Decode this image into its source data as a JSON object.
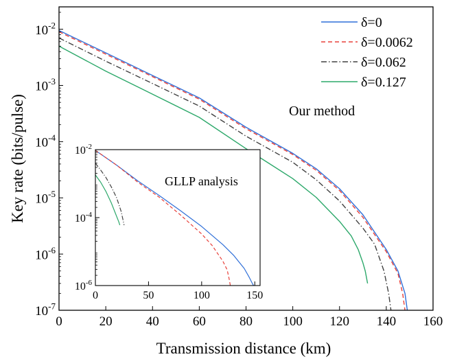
{
  "chart_data": [
    {
      "type": "line",
      "xlabel": "Transmission distance (km)",
      "ylabel": "Key rate (bits/pulse)",
      "xlim": [
        0,
        160
      ],
      "ylim": [
        1e-07,
        0.025
      ],
      "yscale": "log",
      "x_ticks": [
        0,
        20,
        40,
        60,
        80,
        100,
        120,
        140,
        160
      ],
      "y_ticks": [
        {
          "value": 1e-07,
          "base": "10",
          "exp": "-7"
        },
        {
          "value": 1e-06,
          "base": "10",
          "exp": "-6"
        },
        {
          "value": 1e-05,
          "base": "10",
          "exp": "-5"
        },
        {
          "value": 0.0001,
          "base": "10",
          "exp": "-4"
        },
        {
          "value": 0.001,
          "base": "10",
          "exp": "-3"
        },
        {
          "value": 0.01,
          "base": "10",
          "exp": "-2"
        }
      ],
      "annotation": "Our method",
      "legend_position": "top-right",
      "series": [
        {
          "name": "δ=0",
          "color": "#2f6fd8",
          "dash": "solid",
          "points": [
            [
              0,
              0.0095
            ],
            [
              20,
              0.0038
            ],
            [
              40,
              0.0015
            ],
            [
              60,
              0.0006
            ],
            [
              80,
              0.00018
            ],
            [
              100,
              6.2e-05
            ],
            [
              110,
              3.3e-05
            ],
            [
              120,
              1.45e-05
            ],
            [
              130,
              5e-06
            ],
            [
              140,
              1.2e-06
            ],
            [
              145,
              5e-07
            ],
            [
              148,
              2e-07
            ],
            [
              149,
              1e-07
            ]
          ]
        },
        {
          "name": "δ=0.0062",
          "color": "#e8403a",
          "dash": "dashed",
          "points": [
            [
              0,
              0.009
            ],
            [
              20,
              0.0036
            ],
            [
              40,
              0.00143
            ],
            [
              60,
              0.00057
            ],
            [
              80,
              0.00017
            ],
            [
              100,
              5.9e-05
            ],
            [
              110,
              3.1e-05
            ],
            [
              120,
              1.35e-05
            ],
            [
              130,
              4.5e-06
            ],
            [
              140,
              1.1e-06
            ],
            [
              145,
              4.5e-07
            ],
            [
              147,
              2e-07
            ],
            [
              148,
              1e-07
            ]
          ]
        },
        {
          "name": "δ=0.062",
          "color": "#404040",
          "dash": "dashdot",
          "points": [
            [
              0,
              0.007
            ],
            [
              20,
              0.0027
            ],
            [
              40,
              0.00108
            ],
            [
              60,
              0.00043
            ],
            [
              80,
              0.000125
            ],
            [
              100,
              4.3e-05
            ],
            [
              110,
              2.1e-05
            ],
            [
              120,
              8.8e-06
            ],
            [
              130,
              2.9e-06
            ],
            [
              135,
              1.5e-06
            ],
            [
              139,
              5e-07
            ],
            [
              141,
              2e-07
            ],
            [
              142,
              1e-07
            ]
          ]
        },
        {
          "name": "δ=0.127",
          "color": "#2ca86a",
          "dash": "solid",
          "points": [
            [
              0,
              0.005
            ],
            [
              20,
              0.0018
            ],
            [
              40,
              0.0007
            ],
            [
              60,
              0.00027
            ],
            [
              80,
              7.5e-05
            ],
            [
              100,
              2.2e-05
            ],
            [
              110,
              1.02e-05
            ],
            [
              120,
              3.8e-06
            ],
            [
              125,
              2.1e-06
            ],
            [
              128,
              1.2e-06
            ],
            [
              130,
              7e-07
            ],
            [
              131,
              5e-07
            ],
            [
              132,
              3e-07
            ]
          ]
        }
      ]
    },
    {
      "type": "line",
      "inset": true,
      "annotation": "GLLP analysis",
      "xlim": [
        0,
        155
      ],
      "ylim": [
        1e-06,
        0.01
      ],
      "yscale": "log",
      "x_ticks": [
        0,
        50,
        100,
        150
      ],
      "y_ticks": [
        {
          "value": 1e-06,
          "base": "10",
          "exp": "-6"
        },
        {
          "value": 0.0001,
          "base": "10",
          "exp": "-4"
        },
        {
          "value": 0.01,
          "base": "10",
          "exp": "-2"
        }
      ],
      "series": [
        {
          "name": "δ=0",
          "color": "#2f6fd8",
          "dash": "solid",
          "points": [
            [
              0,
              0.0095
            ],
            [
              20,
              0.0035
            ],
            [
              40,
              0.0012
            ],
            [
              60,
              0.00045
            ],
            [
              80,
              0.00016
            ],
            [
              100,
              5.5e-05
            ],
            [
              120,
              1.6e-05
            ],
            [
              130,
              7.8e-06
            ],
            [
              140,
              3.2e-06
            ],
            [
              145,
              1.7e-06
            ],
            [
              148,
              1.1e-06
            ],
            [
              149,
              1e-06
            ]
          ]
        },
        {
          "name": "δ=0.0062",
          "color": "#e8403a",
          "dash": "dashed",
          "points": [
            [
              0,
              0.0095
            ],
            [
              20,
              0.0035
            ],
            [
              40,
              0.0011
            ],
            [
              60,
              0.0004
            ],
            [
              80,
              0.00012
            ],
            [
              100,
              3.3e-05
            ],
            [
              110,
              1.5e-05
            ],
            [
              120,
              5.2e-06
            ],
            [
              124,
              2.9e-06
            ],
            [
              126,
              1.5e-06
            ],
            [
              127,
              1e-06
            ]
          ]
        },
        {
          "name": "δ=0.062",
          "color": "#404040",
          "dash": "dashdot",
          "points": [
            [
              0,
              0.004
            ],
            [
              5,
              0.0025
            ],
            [
              10,
              0.0015
            ],
            [
              15,
              0.0008
            ],
            [
              20,
              0.00038
            ],
            [
              24,
              0.00016
            ],
            [
              26,
              8.5e-05
            ],
            [
              27,
              6e-05
            ]
          ]
        },
        {
          "name": "δ=0.127",
          "color": "#2ca86a",
          "dash": "solid",
          "points": [
            [
              0,
              0.0018
            ],
            [
              5,
              0.0011
            ],
            [
              10,
              0.00058
            ],
            [
              15,
              0.00027
            ],
            [
              19,
              0.00013
            ],
            [
              22,
              7.5e-05
            ],
            [
              23,
              6e-05
            ]
          ]
        }
      ]
    }
  ]
}
